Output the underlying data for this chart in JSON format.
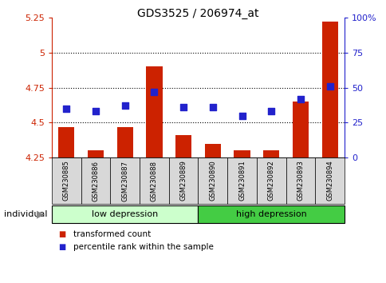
{
  "title": "GDS3525 / 206974_at",
  "samples": [
    "GSM230885",
    "GSM230886",
    "GSM230887",
    "GSM230888",
    "GSM230889",
    "GSM230890",
    "GSM230891",
    "GSM230892",
    "GSM230893",
    "GSM230894"
  ],
  "transformed_count": [
    4.47,
    4.3,
    4.47,
    4.9,
    4.41,
    4.35,
    4.3,
    4.3,
    4.65,
    5.22
  ],
  "percentile_rank": [
    35,
    33,
    37,
    47,
    36,
    36,
    30,
    33,
    42,
    51
  ],
  "ylim_left": [
    4.25,
    5.25
  ],
  "ylim_right": [
    0,
    100
  ],
  "yticks_left": [
    4.25,
    4.5,
    4.75,
    5.0,
    5.25
  ],
  "yticks_right": [
    0,
    25,
    50,
    75,
    100
  ],
  "ytick_labels_left": [
    "4.25",
    "4.5",
    "4.75",
    "5",
    "5.25"
  ],
  "ytick_labels_right": [
    "0",
    "25",
    "50",
    "75",
    "100%"
  ],
  "hlines": [
    5.0,
    4.75,
    4.5
  ],
  "bar_color": "#cc2200",
  "dot_color": "#2222cc",
  "group_labels": [
    "low depression",
    "high depression"
  ],
  "group_ranges": [
    [
      0,
      5
    ],
    [
      5,
      10
    ]
  ],
  "group_colors": [
    "#ccffcc",
    "#44cc44"
  ],
  "individual_label": "individual",
  "legend_items": [
    "transformed count",
    "percentile rank within the sample"
  ],
  "legend_colors": [
    "#cc2200",
    "#2222cc"
  ],
  "ylabel_left_color": "#cc2200",
  "ylabel_right_color": "#2222cc",
  "base_value": 4.25,
  "plot_bg_upper": "#ffffff",
  "plot_bg_lower": "#cccccc",
  "bar_area_bg": "#cccccc"
}
